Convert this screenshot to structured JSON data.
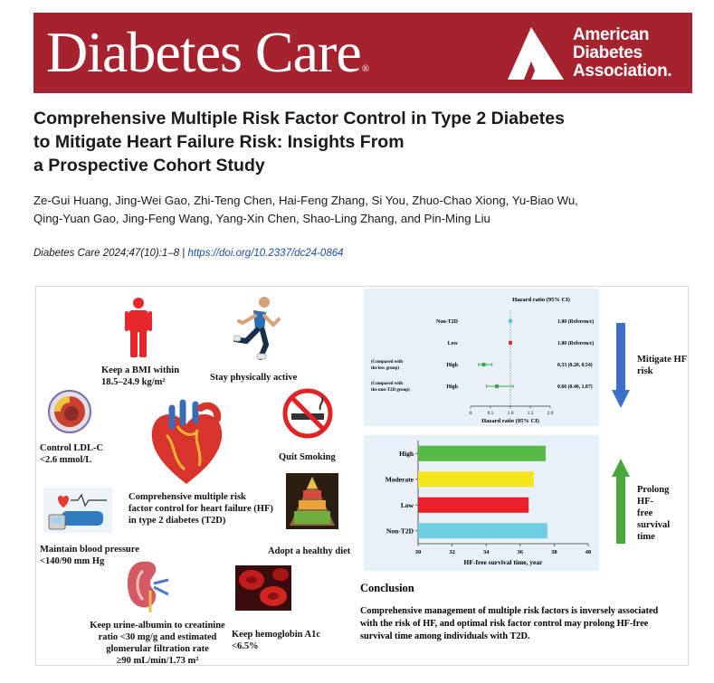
{
  "header": {
    "journal_name": "Diabetes Care",
    "registered_mark": "®",
    "association_lines": [
      "American",
      "Diabetes",
      "Association."
    ],
    "colors": {
      "banner": "#a4232f",
      "text": "#ffffff"
    }
  },
  "article": {
    "title_lines": [
      "Comprehensive Multiple Risk Factor Control in Type 2 Diabetes",
      "to Mitigate Heart Failure Risk: Insights From",
      "a Prospective Cohort Study"
    ],
    "author_lines": [
      "Ze-Gui Huang, Jing-Wei Gao, Zhi-Teng Chen, Hai-Feng Zhang, Si You, Zhuo-Chao Xiong, Yu-Biao Wu,",
      "Qing-Yuan Gao, Jing-Feng Wang, Yang-Xin Chen, Shao-Ling Zhang, and Pin-Ming Liu"
    ],
    "citation": "Diabetes Care 2024;47(10):1–8",
    "separator": "|",
    "doi": "https://doi.org/10.2337/dc24-0864"
  },
  "figure": {
    "risk_factors": {
      "bmi": [
        "Keep a BMI within",
        "18.5–24.9 kg/m²"
      ],
      "activity": [
        "Stay physically active"
      ],
      "ldl": [
        "Control LDL-C",
        "<2.6 mmol/L"
      ],
      "smoking": [
        "Quit Smoking"
      ],
      "center": [
        "Comprehensive multiple risk",
        "factor control for heart failure (HF)",
        "in type 2 diabetes (T2D)"
      ],
      "bp": [
        "Maintain blood pressure",
        "<140/90 mm Hg"
      ],
      "diet": [
        "Adopt a healthy diet"
      ],
      "urine": [
        "Keep urine-albumin to creatinine",
        "ratio <30 mg/g and estimated",
        "glomerular filtration rate",
        "≥90 mL/min/1.73 m²"
      ],
      "hba1c": [
        "Keep hemoglobin A1c",
        "<6.5%"
      ]
    },
    "arrows": {
      "mitigate": [
        "Mitigate HF",
        "risk"
      ],
      "prolong": [
        "Prolong HF-",
        "free survival",
        "time"
      ]
    },
    "conclusion": {
      "heading": "Conclusion",
      "lines": [
        "Comprehensive management of multiple risk factors is inversely associated",
        "with the risk of HF, and optimal risk factor control may prolong HF-free",
        "survival time among individuals with T2D."
      ]
    }
  },
  "chart_data": [
    {
      "type": "forest",
      "title": "Hazard ratio (95% CI)",
      "xlabel": "Hazard ratio (95% CI)",
      "xlim": [
        0,
        2.0
      ],
      "xticks": [
        "0",
        "0.5",
        "1.0",
        "1.5",
        "2.0"
      ],
      "rows": [
        {
          "label": "Non-T2D",
          "note": "",
          "hr": 1.0,
          "lo": 1.0,
          "hi": 1.0,
          "text": "1.00 (Reference)",
          "color": "#5bc8d8"
        },
        {
          "label": "Low",
          "note": "",
          "hr": 1.0,
          "lo": 1.0,
          "hi": 1.0,
          "text": "1.00 (Reference)",
          "color": "#e82a35"
        },
        {
          "label": "High",
          "note": "(Compared with the low group)",
          "note_lines": [
            "(Compared with",
            "the low group)"
          ],
          "hr": 0.33,
          "lo": 0.2,
          "hi": 0.54,
          "text": "0.33 (0.20, 0.54)",
          "color": "#3aa648"
        },
        {
          "label": "High",
          "note": "(Compared with the non-T2D group)",
          "note_lines": [
            "(Compared with",
            "the non-T2D group)"
          ],
          "hr": 0.66,
          "lo": 0.4,
          "hi": 1.07,
          "text": "0.66 (0.40, 1.07)",
          "color": "#3aa648"
        }
      ]
    },
    {
      "type": "bar",
      "orientation": "horizontal",
      "categories": [
        "High",
        "Moderate",
        "Low",
        "Non-T2D"
      ],
      "values": [
        37.5,
        36.8,
        36.5,
        37.6
      ],
      "colors": [
        "#58b947",
        "#f4e61c",
        "#e8202a",
        "#6fcde0"
      ],
      "xlabel": "HF-free survival time, year",
      "ylabel": "",
      "xlim": [
        30,
        40
      ],
      "xticks": [
        "30",
        "32",
        "34",
        "36",
        "38",
        "40"
      ]
    }
  ]
}
